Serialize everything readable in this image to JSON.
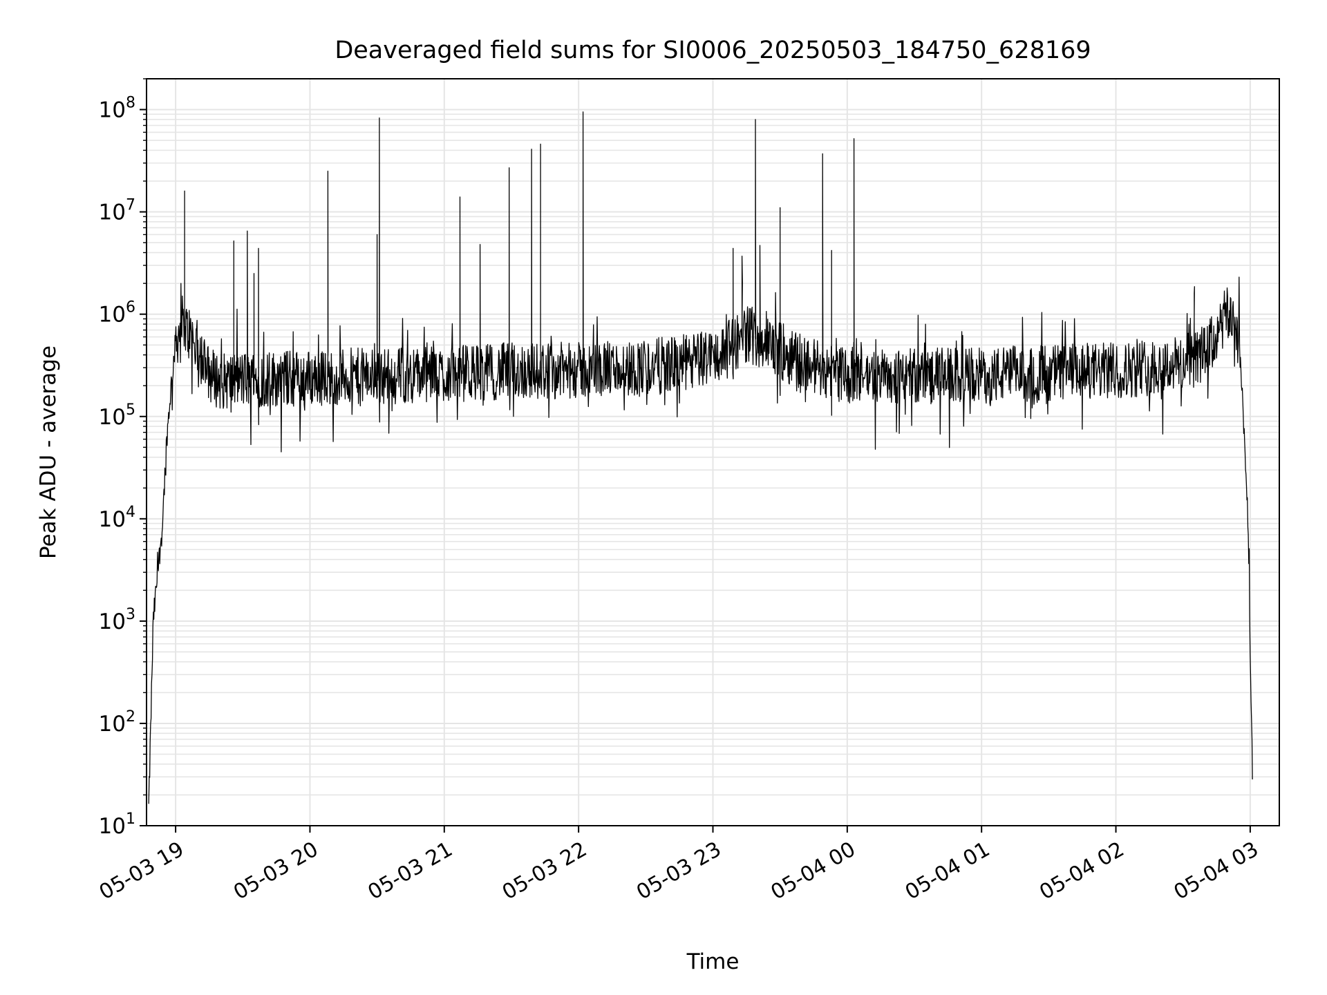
{
  "chart_data": {
    "type": "line",
    "title": "Deaveraged field sums for SI0006_20250503_184750_628169",
    "xlabel": "Time",
    "ylabel": "Peak ADU - average",
    "yscale": "log",
    "xlim": [
      "2025-05-03 18:47",
      "2025-05-04 03:13"
    ],
    "ylim": [
      10,
      200000000
    ],
    "grid": true,
    "line_color": "#000000",
    "grid_color": "#e5e5e5",
    "x_ticks": [
      "05-03 19",
      "05-03 20",
      "05-03 21",
      "05-03 22",
      "05-03 23",
      "05-04 00",
      "05-04 01",
      "05-04 02",
      "05-04 03"
    ],
    "y_ticks": [
      {
        "value": 10,
        "base": "10",
        "exp": "1"
      },
      {
        "value": 100,
        "base": "10",
        "exp": "2"
      },
      {
        "value": 1000,
        "base": "10",
        "exp": "3"
      },
      {
        "value": 10000,
        "base": "10",
        "exp": "4"
      },
      {
        "value": 100000,
        "base": "10",
        "exp": "5"
      },
      {
        "value": 1000000,
        "base": "10",
        "exp": "6"
      },
      {
        "value": 10000000,
        "base": "10",
        "exp": "7"
      },
      {
        "value": 100000000,
        "base": "10",
        "exp": "8"
      }
    ],
    "series": [
      {
        "baseline": {
          "x": [
            "2025-05-03 18:48",
            "2025-05-03 18:50",
            "2025-05-03 18:52",
            "2025-05-03 18:54",
            "2025-05-03 18:56",
            "2025-05-03 18:58",
            "2025-05-03 19:00",
            "2025-05-03 19:03",
            "2025-05-03 19:06",
            "2025-05-03 19:10",
            "2025-05-03 19:15",
            "2025-05-03 19:20",
            "2025-05-03 19:30",
            "2025-05-03 20:00",
            "2025-05-03 20:30",
            "2025-05-03 21:00",
            "2025-05-03 21:30",
            "2025-05-03 22:00",
            "2025-05-03 22:30",
            "2025-05-03 22:50",
            "2025-05-03 23:05",
            "2025-05-03 23:15",
            "2025-05-03 23:25",
            "2025-05-03 23:40",
            "2025-05-04 00:00",
            "2025-05-04 00:30",
            "2025-05-04 01:00",
            "2025-05-04 01:30",
            "2025-05-04 02:00",
            "2025-05-04 02:30",
            "2025-05-04 02:40",
            "2025-05-04 02:45",
            "2025-05-04 02:48",
            "2025-05-04 02:50",
            "2025-05-04 02:53",
            "2025-05-04 02:55",
            "2025-05-04 02:57",
            "2025-05-04 02:59",
            "2025-05-04 03:00",
            "2025-05-04 03:01"
          ],
          "y": [
            15,
            1000,
            3000,
            8000,
            60000,
            200000,
            550000,
            800000,
            650000,
            450000,
            260000,
            220000,
            230000,
            240000,
            250000,
            260000,
            280000,
            280000,
            300000,
            340000,
            420000,
            650000,
            500000,
            340000,
            250000,
            250000,
            250000,
            270000,
            280000,
            330000,
            420000,
            600000,
            850000,
            1000000,
            900000,
            500000,
            100000,
            10000,
            500,
            30
          ]
        },
        "spikes": {
          "x": [
            "2025-05-03 19:04",
            "2025-05-03 19:26",
            "2025-05-03 19:32",
            "2025-05-03 19:35",
            "2025-05-03 19:37",
            "2025-05-03 20:08",
            "2025-05-03 20:30",
            "2025-05-03 20:31",
            "2025-05-03 21:07",
            "2025-05-03 21:16",
            "2025-05-03 21:29",
            "2025-05-03 21:39",
            "2025-05-03 21:43",
            "2025-05-03 22:02",
            "2025-05-03 23:09",
            "2025-05-03 23:19",
            "2025-05-03 23:30",
            "2025-05-03 23:49",
            "2025-05-03 23:53",
            "2025-05-04 00:03",
            "2025-05-03 23:13",
            "2025-05-03 23:21",
            "2025-05-04 02:35"
          ],
          "y": [
            16000000,
            5200000,
            6500000,
            2500000,
            4400000,
            25000000,
            6000000,
            83000000,
            14000000,
            4800000,
            27000000,
            41000000,
            46000000,
            95000000,
            4400000,
            80000000,
            11000000,
            37000000,
            4200000,
            52000000,
            3700000,
            4700000,
            1600000
          ]
        }
      }
    ]
  }
}
